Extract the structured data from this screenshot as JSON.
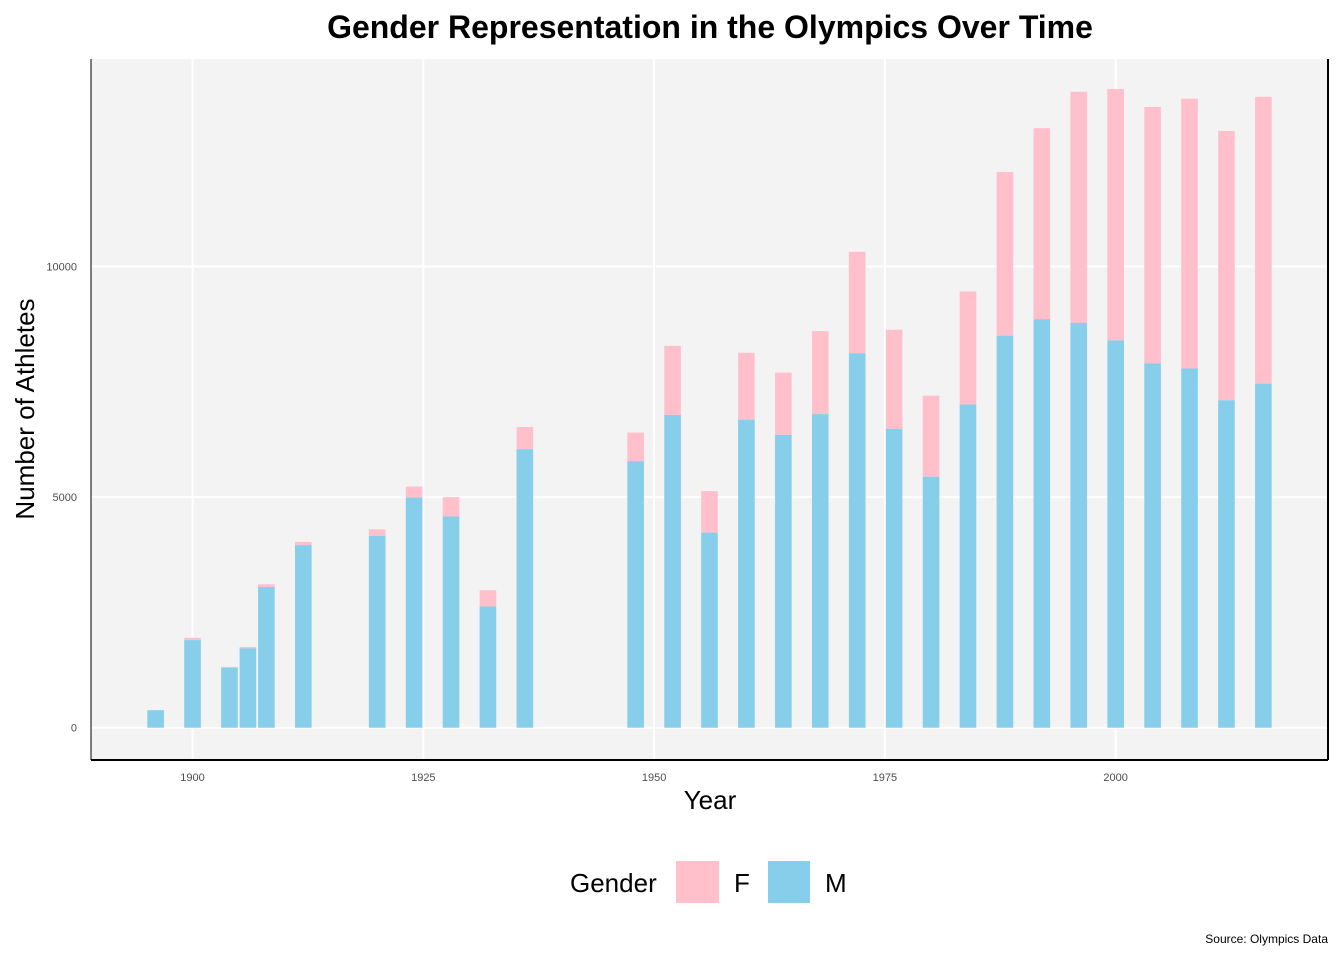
{
  "chart_data": {
    "type": "bar",
    "stacked": true,
    "title": "Gender Representation in the Olympics Over Time",
    "xlabel": "Year",
    "ylabel": "Number of Athletes",
    "caption": "Source: Olympics Data",
    "xlim": [
      1889,
      2023
    ],
    "ylim": [
      -700,
      14500
    ],
    "x_ticks": [
      "1900",
      "1925",
      "1950",
      "1975",
      "2000"
    ],
    "y_ticks": [
      "0",
      "5000",
      "10000"
    ],
    "grid": true,
    "legend": {
      "title": "Gender",
      "placement": "bottom",
      "entries": [
        {
          "key": "F",
          "label": "F",
          "color": "#FFC0CB"
        },
        {
          "key": "M",
          "label": "M",
          "color": "#87CEEB"
        }
      ]
    },
    "x": [
      1896,
      1900,
      1904,
      1906,
      1908,
      1912,
      1920,
      1924,
      1928,
      1932,
      1936,
      1948,
      1952,
      1956,
      1960,
      1964,
      1968,
      1972,
      1976,
      1980,
      1984,
      1988,
      1992,
      1996,
      2000,
      2004,
      2008,
      2012,
      2016
    ],
    "series": [
      {
        "name": "M",
        "color": "#87CEEB",
        "values": [
          380,
          1900,
          1300,
          1720,
          3050,
          3960,
          4160,
          4990,
          4580,
          2630,
          6040,
          5780,
          6780,
          4230,
          6680,
          6350,
          6800,
          8120,
          6480,
          5440,
          7010,
          8500,
          8860,
          8780,
          8400,
          7900,
          7790,
          7100,
          7460
        ]
      },
      {
        "name": "F",
        "color": "#FFC0CB",
        "values": [
          0,
          50,
          20,
          30,
          60,
          70,
          140,
          240,
          420,
          350,
          480,
          620,
          1500,
          900,
          1450,
          1350,
          1800,
          2200,
          2150,
          1760,
          2450,
          3550,
          4140,
          5010,
          5450,
          5560,
          5850,
          5840,
          6220
        ]
      }
    ]
  }
}
